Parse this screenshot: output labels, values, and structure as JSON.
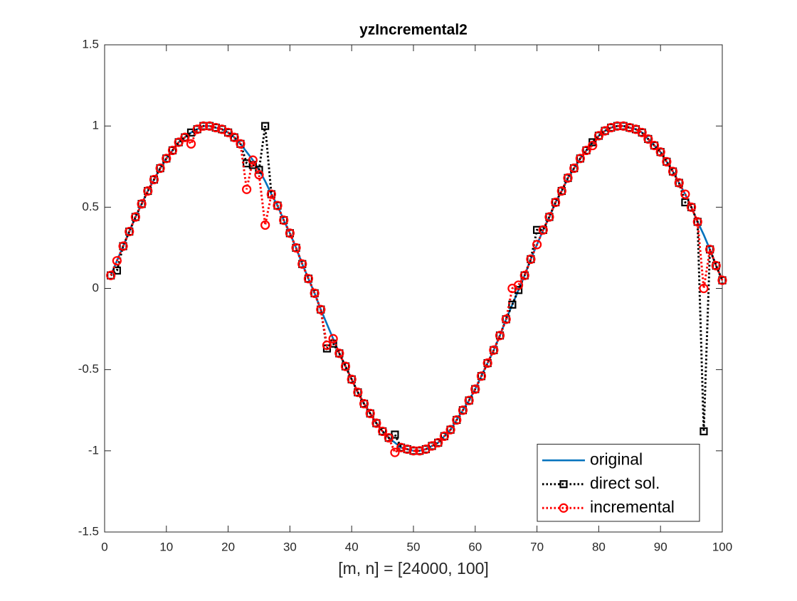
{
  "chart_data": {
    "type": "line",
    "title": "yzIncremental2",
    "x_label": "[m, n] = [24000, 100]",
    "x": [
      1,
      2,
      3,
      4,
      5,
      6,
      7,
      8,
      9,
      10,
      11,
      12,
      13,
      14,
      15,
      16,
      17,
      18,
      19,
      20,
      21,
      22,
      23,
      24,
      25,
      26,
      27,
      28,
      29,
      30,
      31,
      32,
      33,
      34,
      35,
      36,
      37,
      38,
      39,
      40,
      41,
      42,
      43,
      44,
      45,
      46,
      47,
      48,
      49,
      50,
      51,
      52,
      53,
      54,
      55,
      56,
      57,
      58,
      59,
      60,
      61,
      62,
      63,
      64,
      65,
      66,
      67,
      68,
      69,
      70,
      71,
      72,
      73,
      74,
      75,
      76,
      77,
      78,
      79,
      80,
      81,
      82,
      83,
      84,
      85,
      86,
      87,
      88,
      89,
      90,
      91,
      92,
      93,
      94,
      95,
      96,
      97,
      98,
      99,
      100
    ],
    "series": [
      {
        "name": "original",
        "color": "#0072bd",
        "style": "solid",
        "marker": "none",
        "values": [
          0.08,
          0.17,
          0.26,
          0.35,
          0.44,
          0.52,
          0.6,
          0.67,
          0.74,
          0.8,
          0.85,
          0.9,
          0.93,
          0.96,
          0.98,
          1.0,
          1.0,
          0.99,
          0.98,
          0.96,
          0.93,
          0.89,
          0.84,
          0.79,
          0.73,
          0.66,
          0.58,
          0.51,
          0.42,
          0.34,
          0.25,
          0.15,
          0.06,
          -0.03,
          -0.13,
          -0.22,
          -0.31,
          -0.4,
          -0.48,
          -0.56,
          -0.64,
          -0.71,
          -0.77,
          -0.83,
          -0.88,
          -0.92,
          -0.95,
          -0.98,
          -0.99,
          -1.0,
          -1.0,
          -0.99,
          -0.97,
          -0.95,
          -0.91,
          -0.87,
          -0.81,
          -0.75,
          -0.69,
          -0.62,
          -0.54,
          -0.46,
          -0.38,
          -0.29,
          -0.19,
          -0.1,
          -0.01,
          0.08,
          0.18,
          0.27,
          0.36,
          0.44,
          0.53,
          0.6,
          0.68,
          0.74,
          0.8,
          0.85,
          0.9,
          0.94,
          0.97,
          0.99,
          1.0,
          1.0,
          0.99,
          0.98,
          0.96,
          0.92,
          0.88,
          0.84,
          0.78,
          0.72,
          0.65,
          0.58,
          0.5,
          0.41,
          0.33,
          0.24,
          0.14,
          0.05
        ]
      },
      {
        "name": "direct sol.",
        "color": "#000000",
        "style": "dotted",
        "marker": "square",
        "values": [
          0.08,
          0.11,
          0.26,
          0.35,
          0.44,
          0.52,
          0.6,
          0.67,
          0.74,
          0.8,
          0.85,
          0.9,
          0.93,
          0.96,
          0.98,
          1.0,
          1.0,
          0.99,
          0.98,
          0.96,
          0.93,
          0.89,
          0.77,
          0.76,
          0.73,
          1.0,
          0.58,
          0.51,
          0.42,
          0.34,
          0.25,
          0.15,
          0.06,
          -0.03,
          -0.13,
          -0.37,
          -0.34,
          -0.4,
          -0.48,
          -0.56,
          -0.64,
          -0.71,
          -0.77,
          -0.83,
          -0.88,
          -0.92,
          -0.9,
          -0.98,
          -0.99,
          -1.0,
          -1.0,
          -0.99,
          -0.97,
          -0.95,
          -0.91,
          -0.87,
          -0.81,
          -0.75,
          -0.69,
          -0.62,
          -0.54,
          -0.46,
          -0.38,
          -0.29,
          -0.19,
          -0.1,
          -0.01,
          0.08,
          0.18,
          0.36,
          0.36,
          0.44,
          0.53,
          0.6,
          0.68,
          0.74,
          0.8,
          0.85,
          0.9,
          0.94,
          0.97,
          0.99,
          1.0,
          1.0,
          0.99,
          0.98,
          0.96,
          0.92,
          0.88,
          0.84,
          0.78,
          0.72,
          0.65,
          0.53,
          0.5,
          0.41,
          -0.88,
          0.24,
          0.14,
          0.05
        ]
      },
      {
        "name": "incremental",
        "color": "#ff0000",
        "style": "dotted",
        "marker": "circle",
        "values": [
          0.08,
          0.17,
          0.26,
          0.35,
          0.44,
          0.52,
          0.6,
          0.67,
          0.74,
          0.8,
          0.85,
          0.9,
          0.93,
          0.89,
          0.98,
          1.0,
          1.0,
          0.99,
          0.98,
          0.96,
          0.93,
          0.89,
          0.61,
          0.79,
          0.7,
          0.39,
          0.58,
          0.51,
          0.42,
          0.34,
          0.25,
          0.15,
          0.06,
          -0.03,
          -0.13,
          -0.35,
          -0.31,
          -0.4,
          -0.48,
          -0.56,
          -0.64,
          -0.71,
          -0.77,
          -0.83,
          -0.88,
          -0.92,
          -1.01,
          -0.98,
          -0.99,
          -1.0,
          -1.0,
          -0.99,
          -0.97,
          -0.95,
          -0.91,
          -0.87,
          -0.81,
          -0.75,
          -0.69,
          -0.62,
          -0.54,
          -0.46,
          -0.38,
          -0.29,
          -0.19,
          0.0,
          0.02,
          0.08,
          0.18,
          0.27,
          0.36,
          0.44,
          0.53,
          0.6,
          0.68,
          0.74,
          0.8,
          0.85,
          0.88,
          0.94,
          0.97,
          0.99,
          1.0,
          1.0,
          0.99,
          0.98,
          0.96,
          0.92,
          0.88,
          0.84,
          0.78,
          0.72,
          0.65,
          0.58,
          0.5,
          0.41,
          0.0,
          0.24,
          0.14,
          0.05
        ]
      }
    ],
    "xlim": [
      0,
      100
    ],
    "xticks": [
      0,
      10,
      20,
      30,
      40,
      50,
      60,
      70,
      80,
      90,
      100
    ],
    "ylim": [
      -1.5,
      1.5
    ],
    "yticks": [
      -1.5,
      -1,
      -0.5,
      0,
      0.5,
      1,
      1.5
    ],
    "grid": false,
    "legend": "southeast"
  }
}
